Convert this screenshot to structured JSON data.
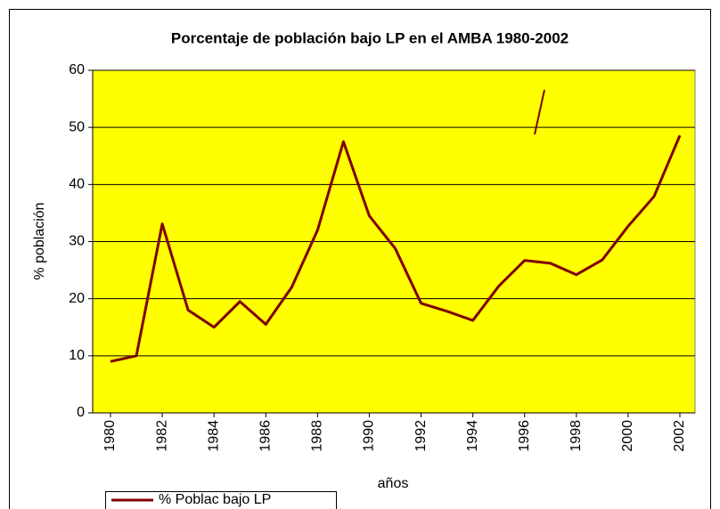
{
  "chart_data": {
    "type": "line",
    "title": "Porcentaje de población bajo LP en el AMBA 1980-2002",
    "x_label": "años",
    "y_label": "% población",
    "x": [
      1980,
      1981,
      1982,
      1983,
      1984,
      1985,
      1986,
      1987,
      1988,
      1989,
      1990,
      1991,
      1992,
      1993,
      1994,
      1995,
      1996,
      1997,
      1998,
      1999,
      2000,
      2001,
      2002
    ],
    "series": [
      {
        "name": "% Poblac bajo LP",
        "color": "#800000",
        "values": [
          9.0,
          10,
          33.1,
          18,
          15,
          19.5,
          15.5,
          22,
          32,
          47.5,
          34.5,
          28.8,
          19.2,
          17.8,
          16.2,
          22.2,
          26.7,
          26.2,
          24.2,
          26.8,
          32.7,
          37.9,
          48.6
        ]
      }
    ],
    "xlim": [
      1980,
      2002
    ],
    "xticks": [
      1980,
      1982,
      1984,
      1986,
      1988,
      1990,
      1992,
      1994,
      1996,
      1998,
      2000,
      2002
    ],
    "ylim": [
      0,
      60
    ],
    "yticks": [
      0,
      10,
      20,
      30,
      40,
      50,
      60
    ],
    "grid": true,
    "legend": "bottom-left",
    "background": "#ffff00"
  }
}
